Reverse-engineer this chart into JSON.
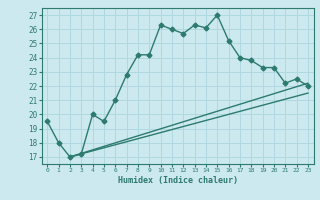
{
  "xlabel": "Humidex (Indice chaleur)",
  "ylabel": "",
  "xlim": [
    -0.5,
    23.5
  ],
  "ylim": [
    16.5,
    27.5
  ],
  "yticks": [
    17,
    18,
    19,
    20,
    21,
    22,
    23,
    24,
    25,
    26,
    27
  ],
  "xticks": [
    0,
    1,
    2,
    3,
    4,
    5,
    6,
    7,
    8,
    9,
    10,
    11,
    12,
    13,
    14,
    15,
    16,
    17,
    18,
    19,
    20,
    21,
    22,
    23
  ],
  "bg_color": "#cce9f0",
  "line_color": "#2d7a6e",
  "grid_color": "#b0d8e0",
  "main_x": [
    0,
    1,
    2,
    3,
    4,
    5,
    6,
    7,
    8,
    9,
    10,
    11,
    12,
    13,
    14,
    15,
    16,
    17,
    18,
    19,
    20,
    21,
    22,
    23
  ],
  "main_y": [
    19.5,
    18.0,
    17.0,
    17.2,
    20.0,
    19.5,
    21.0,
    22.8,
    24.2,
    24.2,
    26.3,
    26.0,
    25.7,
    26.3,
    26.1,
    27.0,
    25.2,
    24.0,
    23.8,
    23.3,
    23.3,
    22.2,
    22.5,
    22.0
  ],
  "line1_x": [
    2,
    23
  ],
  "line1_y": [
    17.0,
    21.5
  ],
  "line2_x": [
    2,
    23
  ],
  "line2_y": [
    17.0,
    22.2
  ],
  "marker": "D",
  "markersize": 2.5,
  "linewidth": 1.0
}
